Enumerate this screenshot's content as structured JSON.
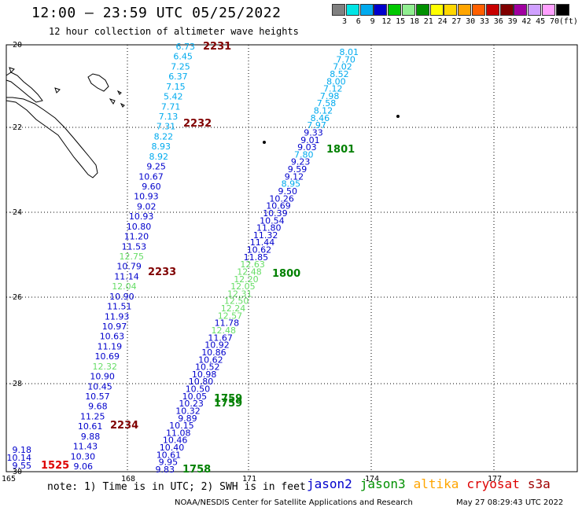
{
  "title": "12:00 – 23:59 UTC 05/25/2022",
  "subtitle": "12 hour collection of altimeter wave heights",
  "legend": {
    "unit": "(ft)",
    "colors": [
      "#808080",
      "#00e5e5",
      "#00aaee",
      "#0000cc",
      "#00c800",
      "#90ee90",
      "#009000",
      "#ffff00",
      "#ffd700",
      "#ffa500",
      "#ff6000",
      "#c80000",
      "#800000",
      "#a000a0",
      "#d0a0ff",
      "#ffa0ff",
      "#000000"
    ],
    "labels": [
      "3",
      "6",
      "9",
      "12",
      "15",
      "18",
      "21",
      "24",
      "27",
      "30",
      "33",
      "36",
      "39",
      "42",
      "45",
      "70"
    ]
  },
  "axes": {
    "x_ticks": [
      "165",
      "168",
      "171",
      "174",
      "177"
    ],
    "y_ticks": [
      "-20",
      "-22",
      "-24",
      "-26",
      "-28",
      "-30"
    ]
  },
  "tracks": {
    "west": [
      {
        "v": "6.73",
        "c": "#00aaee"
      },
      {
        "v": "6.45",
        "c": "#00aaee"
      },
      {
        "v": "7.25",
        "c": "#00aaee"
      },
      {
        "v": "6.37",
        "c": "#00aaee"
      },
      {
        "v": "7.15",
        "c": "#00aaee"
      },
      {
        "v": "5.42",
        "c": "#00aaee"
      },
      {
        "v": "7.71",
        "c": "#00aaee"
      },
      {
        "v": "7.13",
        "c": "#00aaee"
      },
      {
        "v": "7.31",
        "c": "#00aaee"
      },
      {
        "v": "8.22",
        "c": "#00aaee"
      },
      {
        "v": "8.93",
        "c": "#00aaee"
      },
      {
        "v": "8.92",
        "c": "#00aaee"
      },
      {
        "v": "9.25",
        "c": "#0000cc"
      },
      {
        "v": "10.67",
        "c": "#0000cc"
      },
      {
        "v": "9.60",
        "c": "#0000cc"
      },
      {
        "v": "10.93",
        "c": "#0000cc"
      },
      {
        "v": "9.02",
        "c": "#0000cc"
      },
      {
        "v": "10.93",
        "c": "#0000cc"
      },
      {
        "v": "10.80",
        "c": "#0000cc"
      },
      {
        "v": "11.20",
        "c": "#0000cc"
      },
      {
        "v": "11.53",
        "c": "#0000cc"
      },
      {
        "v": "12.75",
        "c": "#66dd66"
      },
      {
        "v": "10.79",
        "c": "#0000cc"
      },
      {
        "v": "11.14",
        "c": "#0000cc"
      },
      {
        "v": "12.04",
        "c": "#66dd66"
      },
      {
        "v": "10.90",
        "c": "#0000cc"
      },
      {
        "v": "11.51",
        "c": "#0000cc"
      },
      {
        "v": "11.93",
        "c": "#0000cc"
      },
      {
        "v": "10.97",
        "c": "#0000cc"
      },
      {
        "v": "10.63",
        "c": "#0000cc"
      },
      {
        "v": "11.19",
        "c": "#0000cc"
      },
      {
        "v": "10.69",
        "c": "#0000cc"
      },
      {
        "v": "12.32",
        "c": "#66dd66"
      },
      {
        "v": "10.90",
        "c": "#0000cc"
      },
      {
        "v": "10.45",
        "c": "#0000cc"
      },
      {
        "v": "10.57",
        "c": "#0000cc"
      },
      {
        "v": "9.68",
        "c": "#0000cc"
      },
      {
        "v": "11.25",
        "c": "#0000cc"
      },
      {
        "v": "10.61",
        "c": "#0000cc"
      },
      {
        "v": "9.88",
        "c": "#0000cc"
      },
      {
        "v": "11.43",
        "c": "#0000cc"
      },
      {
        "v": "10.30",
        "c": "#0000cc"
      },
      {
        "v": "9.06",
        "c": "#0000cc"
      }
    ],
    "east": [
      {
        "v": "8.01",
        "c": "#00aaee"
      },
      {
        "v": "7.70",
        "c": "#00aaee"
      },
      {
        "v": "7.02",
        "c": "#00aaee"
      },
      {
        "v": "8.52",
        "c": "#00aaee"
      },
      {
        "v": "8.00",
        "c": "#00aaee"
      },
      {
        "v": "7.12",
        "c": "#00aaee"
      },
      {
        "v": "7.98",
        "c": "#00aaee"
      },
      {
        "v": "7.58",
        "c": "#00aaee"
      },
      {
        "v": "8.12",
        "c": "#00aaee"
      },
      {
        "v": "8.46",
        "c": "#00aaee"
      },
      {
        "v": "7.97",
        "c": "#00aaee"
      },
      {
        "v": "9.33",
        "c": "#0000cc"
      },
      {
        "v": "9.01",
        "c": "#0000cc"
      },
      {
        "v": "9.03",
        "c": "#0000cc"
      },
      {
        "v": "7.80",
        "c": "#00aaee"
      },
      {
        "v": "9.23",
        "c": "#0000cc"
      },
      {
        "v": "9.59",
        "c": "#0000cc"
      },
      {
        "v": "9.12",
        "c": "#0000cc"
      },
      {
        "v": "8.95",
        "c": "#00aaee"
      },
      {
        "v": "9.50",
        "c": "#0000cc"
      },
      {
        "v": "10.26",
        "c": "#0000cc"
      },
      {
        "v": "10.69",
        "c": "#0000cc"
      },
      {
        "v": "10.39",
        "c": "#0000cc"
      },
      {
        "v": "10.54",
        "c": "#0000cc"
      },
      {
        "v": "11.80",
        "c": "#0000cc"
      },
      {
        "v": "11.32",
        "c": "#0000cc"
      },
      {
        "v": "11.44",
        "c": "#0000cc"
      },
      {
        "v": "10.62",
        "c": "#0000cc"
      },
      {
        "v": "11.85",
        "c": "#0000cc"
      },
      {
        "v": "12.63",
        "c": "#66dd66"
      },
      {
        "v": "12.48",
        "c": "#66dd66"
      },
      {
        "v": "12.20",
        "c": "#66dd66"
      },
      {
        "v": "12.05",
        "c": "#66dd66"
      },
      {
        "v": "12.31",
        "c": "#66dd66"
      },
      {
        "v": "12.50",
        "c": "#66dd66"
      },
      {
        "v": "12.24",
        "c": "#66dd66"
      },
      {
        "v": "12.57",
        "c": "#66dd66"
      },
      {
        "v": "11.78",
        "c": "#0000cc"
      },
      {
        "v": "12.48",
        "c": "#66dd66"
      },
      {
        "v": "11.67",
        "c": "#0000cc"
      },
      {
        "v": "10.92",
        "c": "#0000cc"
      },
      {
        "v": "10.86",
        "c": "#0000cc"
      },
      {
        "v": "10.62",
        "c": "#0000cc"
      },
      {
        "v": "10.52",
        "c": "#0000cc"
      },
      {
        "v": "10.98",
        "c": "#0000cc"
      },
      {
        "v": "10.80",
        "c": "#0000cc"
      },
      {
        "v": "10.50",
        "c": "#0000cc"
      },
      {
        "v": "10.05",
        "c": "#0000cc"
      },
      {
        "v": "10.23",
        "c": "#0000cc"
      },
      {
        "v": "10.32",
        "c": "#0000cc"
      },
      {
        "v": "9.89",
        "c": "#0000cc"
      },
      {
        "v": "10.15",
        "c": "#0000cc"
      },
      {
        "v": "11.08",
        "c": "#0000cc"
      },
      {
        "v": "10.46",
        "c": "#0000cc"
      },
      {
        "v": "10.40",
        "c": "#0000cc"
      },
      {
        "v": "10.61",
        "c": "#0000cc"
      },
      {
        "v": "9.95",
        "c": "#0000cc"
      },
      {
        "v": "9.83",
        "c": "#0000cc"
      }
    ],
    "sw_corner": [
      {
        "v": "9.18",
        "c": "#0000cc"
      },
      {
        "v": "10.14",
        "c": "#0000cc"
      },
      {
        "v": "9.55",
        "c": "#0000cc"
      }
    ]
  },
  "times": {
    "t2231": {
      "label": "2231",
      "color": "#800000"
    },
    "t2232": {
      "label": "2232",
      "color": "#800000"
    },
    "t2233": {
      "label": "2233",
      "color": "#800000"
    },
    "t2234": {
      "label": "2234",
      "color": "#800000"
    },
    "t1525": {
      "label": "1525",
      "color": "#dd0000"
    },
    "t1801": {
      "label": "1801",
      "color": "#008000"
    },
    "t1800": {
      "label": "1800",
      "color": "#008000"
    },
    "t1759a": {
      "label": "1759",
      "color": "#008000"
    },
    "t1759b": {
      "label": "1759",
      "color": "#008000"
    },
    "t1758": {
      "label": "1758",
      "color": "#008000"
    }
  },
  "note": "note: 1) Time is in UTC; 2) SWH is in feet",
  "satellites": [
    {
      "name": "jason2",
      "color": "#0000cc"
    },
    {
      "name": "jason3",
      "color": "#009000"
    },
    {
      "name": "altika",
      "color": "#ffa500"
    },
    {
      "name": "cryosat",
      "color": "#dd0000"
    },
    {
      "name": "s3a",
      "color": "#a00000"
    }
  ],
  "footer_left": "NOAA/NESDIS Center for Satellite Applications and Research",
  "footer_right": "May 27 08:29:43 UTC 2022"
}
